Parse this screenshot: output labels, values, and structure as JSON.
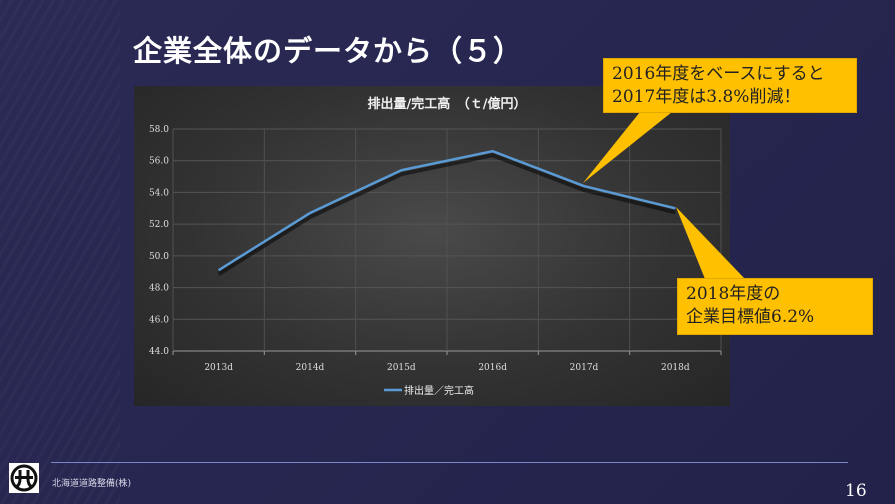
{
  "slide": {
    "title": "企業全体のデータから（５）",
    "company": "北海道道路整備(株)",
    "page_number": "16"
  },
  "callouts": [
    {
      "line1": "2016年度をベースにすると",
      "line2": "2017年度は3.8%削減！"
    },
    {
      "line1": "2018年度の",
      "line2": "企業目標値6.2%"
    }
  ],
  "chart_data": {
    "type": "line",
    "title": "排出量/完工高　（ｔ/億円）",
    "categories": [
      "2013d",
      "2014d",
      "2015d",
      "2016d",
      "2017d",
      "2018d"
    ],
    "series": [
      {
        "name": "排出量／完工高",
        "values": [
          49.1,
          52.7,
          55.4,
          56.6,
          54.4,
          53.0
        ],
        "color": "#5b9bd5"
      }
    ],
    "yticks": [
      "44.0",
      "46.0",
      "48.0",
      "50.0",
      "52.0",
      "54.0",
      "56.0",
      "58.0"
    ],
    "ylim": [
      44,
      58
    ],
    "grid": true,
    "legend": "bottom",
    "xlabel": "",
    "ylabel": ""
  }
}
